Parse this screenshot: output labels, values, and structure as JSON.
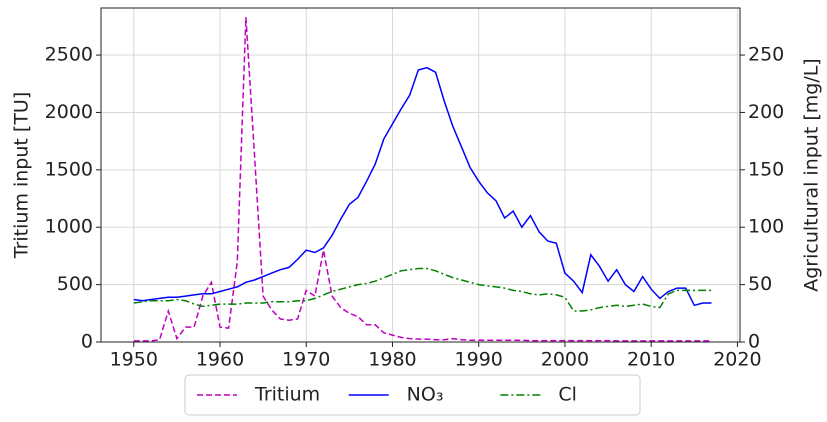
{
  "chart_data": {
    "type": "line",
    "y_label": "Tritium input [TU]",
    "y2_label": "Agricultural input [mg/L]",
    "x": [
      1950,
      1951,
      1952,
      1953,
      1954,
      1955,
      1956,
      1957,
      1958,
      1959,
      1960,
      1961,
      1962,
      1963,
      1964,
      1965,
      1966,
      1967,
      1968,
      1969,
      1970,
      1971,
      1972,
      1973,
      1974,
      1975,
      1976,
      1977,
      1978,
      1979,
      1980,
      1981,
      1982,
      1983,
      1984,
      1985,
      1986,
      1987,
      1988,
      1989,
      1990,
      1991,
      1992,
      1993,
      1994,
      1995,
      1996,
      1997,
      1998,
      1999,
      2000,
      2001,
      2002,
      2003,
      2004,
      2005,
      2006,
      2007,
      2008,
      2009,
      2010,
      2011,
      2012,
      2013,
      2014,
      2015,
      2016,
      2017
    ],
    "series": [
      {
        "name": "Tritium",
        "color": "#bf00bf",
        "linestyle": "dashed",
        "axis": "y",
        "values": [
          10,
          10,
          10,
          20,
          270,
          30,
          130,
          130,
          400,
          520,
          130,
          120,
          700,
          2830,
          1630,
          400,
          280,
          200,
          190,
          200,
          450,
          400,
          800,
          400,
          300,
          250,
          220,
          150,
          150,
          80,
          60,
          40,
          30,
          25,
          25,
          20,
          20,
          30,
          20,
          15,
          15,
          15,
          15,
          15,
          15,
          15,
          12,
          12,
          12,
          12,
          12,
          12,
          12,
          12,
          12,
          12,
          10,
          10,
          10,
          10,
          10,
          10,
          10,
          10,
          10,
          10,
          10,
          10
        ]
      },
      {
        "name": "NO₃",
        "color": "#0000ff",
        "linestyle": "solid",
        "axis": "y2",
        "values": [
          37,
          36,
          37,
          38,
          39,
          39,
          40,
          41,
          42,
          42,
          44,
          46,
          48,
          52,
          54,
          57,
          60,
          63,
          65,
          72,
          80,
          78,
          82,
          93,
          107,
          120,
          126,
          140,
          155,
          177,
          190,
          203,
          215,
          237,
          239,
          235,
          210,
          188,
          170,
          152,
          140,
          130,
          123,
          108,
          114,
          100,
          110,
          96,
          88,
          86,
          60,
          53,
          43,
          76,
          66,
          53,
          63,
          50,
          44,
          57,
          46,
          38,
          44,
          47,
          47,
          32,
          34,
          34
        ]
      },
      {
        "name": "Cl",
        "color": "#008000",
        "linestyle": "dashdot",
        "axis": "y2",
        "values": [
          34,
          35,
          36,
          36,
          36,
          37,
          36,
          33,
          31,
          32,
          33,
          33,
          33,
          34,
          34,
          34,
          35,
          35,
          35,
          36,
          36,
          38,
          41,
          44,
          46,
          48,
          50,
          51,
          53,
          56,
          59,
          62,
          63,
          64,
          64,
          62,
          59,
          56,
          54,
          52,
          50,
          49,
          48,
          47,
          45,
          44,
          42,
          41,
          42,
          41,
          39,
          27,
          27,
          28,
          30,
          31,
          32,
          31,
          32,
          33,
          31,
          30,
          42,
          45,
          45,
          45,
          45,
          45
        ]
      }
    ],
    "xlim": [
      1946.2,
      2020.3
    ],
    "xticks": [
      1950,
      1960,
      1970,
      1980,
      1990,
      2000,
      2010,
      2020
    ],
    "ylim": [
      0,
      2910
    ],
    "yticks": [
      0,
      500,
      1000,
      1500,
      2000,
      2500
    ],
    "y2lim": [
      0,
      291
    ],
    "y2ticks": [
      0,
      50,
      100,
      150,
      200,
      250
    ],
    "grid": true,
    "legend": "bottom"
  }
}
